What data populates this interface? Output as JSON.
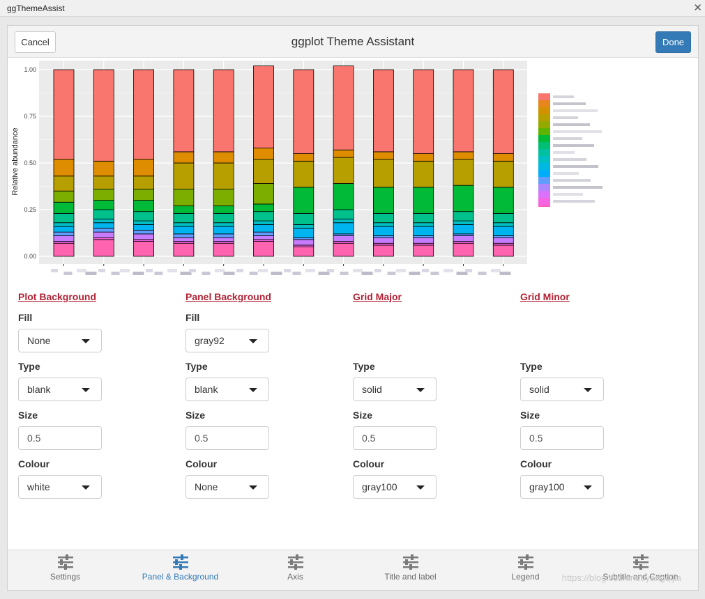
{
  "window": {
    "title": "ggThemeAssist",
    "close_glyph": "✕"
  },
  "header": {
    "cancel_label": "Cancel",
    "title": "ggplot Theme Assistant",
    "done_label": "Done"
  },
  "chart_data": {
    "type": "bar",
    "stacked": true,
    "ylabel": "Relative abundance",
    "ylim": [
      0,
      1
    ],
    "yticks": [
      "0.00",
      "0.25",
      "0.50",
      "0.75",
      "1.00"
    ],
    "categories": [
      "1",
      "2",
      "3",
      "4",
      "5",
      "6",
      "7",
      "8",
      "9",
      "10",
      "11",
      "12"
    ],
    "panel_background": "#ebebeb",
    "grid_color": "#ffffff",
    "legend_position": "right",
    "series": [
      {
        "color": "#f8766d",
        "values": [
          0.48,
          0.49,
          0.48,
          0.44,
          0.44,
          0.44,
          0.45,
          0.45,
          0.44,
          0.45,
          0.44,
          0.45
        ]
      },
      {
        "color": "#de8c00",
        "values": [
          0.09,
          0.08,
          0.09,
          0.06,
          0.06,
          0.06,
          0.04,
          0.04,
          0.04,
          0.04,
          0.04,
          0.04
        ]
      },
      {
        "color": "#b79f00",
        "values": [
          0.08,
          0.07,
          0.07,
          0.14,
          0.14,
          0.13,
          0.14,
          0.14,
          0.15,
          0.14,
          0.14,
          0.14
        ]
      },
      {
        "color": "#7cae00",
        "values": [
          0.06,
          0.06,
          0.06,
          0.09,
          0.09,
          0.11,
          0.0,
          0.0,
          0.0,
          0.0,
          0.0,
          0.0
        ]
      },
      {
        "color": "#00ba38",
        "values": [
          0.06,
          0.05,
          0.06,
          0.04,
          0.04,
          0.04,
          0.14,
          0.14,
          0.14,
          0.14,
          0.14,
          0.14
        ]
      },
      {
        "color": "#00c08b",
        "values": [
          0.05,
          0.05,
          0.05,
          0.05,
          0.05,
          0.05,
          0.06,
          0.05,
          0.05,
          0.05,
          0.05,
          0.05
        ]
      },
      {
        "color": "#00bfc4",
        "values": [
          0.02,
          0.02,
          0.02,
          0.02,
          0.02,
          0.02,
          0.02,
          0.02,
          0.02,
          0.02,
          0.02,
          0.02
        ]
      },
      {
        "color": "#00b4f0",
        "values": [
          0.03,
          0.03,
          0.03,
          0.04,
          0.04,
          0.04,
          0.05,
          0.06,
          0.05,
          0.05,
          0.05,
          0.05
        ]
      },
      {
        "color": "#619cff",
        "values": [
          0.02,
          0.02,
          0.02,
          0.02,
          0.02,
          0.02,
          0.01,
          0.01,
          0.01,
          0.01,
          0.01,
          0.01
        ]
      },
      {
        "color": "#c77cff",
        "values": [
          0.03,
          0.03,
          0.03,
          0.02,
          0.02,
          0.02,
          0.03,
          0.03,
          0.03,
          0.03,
          0.03,
          0.03
        ]
      },
      {
        "color": "#f564e3",
        "values": [
          0.01,
          0.01,
          0.01,
          0.01,
          0.01,
          0.01,
          0.01,
          0.01,
          0.01,
          0.01,
          0.01,
          0.01
        ]
      },
      {
        "color": "#ff64b0",
        "values": [
          0.07,
          0.09,
          0.08,
          0.07,
          0.07,
          0.08,
          0.05,
          0.07,
          0.06,
          0.06,
          0.07,
          0.06
        ]
      }
    ]
  },
  "legend": {
    "swatches": [
      "#f8766d",
      "#e7861b",
      "#d39200",
      "#b79f00",
      "#93aa00",
      "#5eb300",
      "#00ba38",
      "#00bf74",
      "#00c19f",
      "#00bfc4",
      "#00b9e3",
      "#00adfa",
      "#619cff",
      "#ae87ff",
      "#db72fb",
      "#f564e3",
      "#ff61c3"
    ]
  },
  "sections": [
    {
      "title": "Plot Background",
      "fill_label": "Fill",
      "fill_value": "None",
      "type_label": "Type",
      "type_value": "blank",
      "size_label": "Size",
      "size_value": "0.5",
      "colour_label": "Colour",
      "colour_value": "white"
    },
    {
      "title": "Panel Background",
      "fill_label": "Fill",
      "fill_value": "gray92",
      "type_label": "Type",
      "type_value": "blank",
      "size_label": "Size",
      "size_value": "0.5",
      "colour_label": "Colour",
      "colour_value": "None"
    },
    {
      "title": "Grid Major",
      "type_label": "Type",
      "type_value": "solid",
      "size_label": "Size",
      "size_value": "0.5",
      "colour_label": "Colour",
      "colour_value": "gray100"
    },
    {
      "title": "Grid Minor",
      "type_label": "Type",
      "type_value": "solid",
      "size_label": "Size",
      "size_value": "0.5",
      "colour_label": "Colour",
      "colour_value": "gray100"
    }
  ],
  "tabs": [
    {
      "label": "Settings",
      "active": false
    },
    {
      "label": "Panel & Background",
      "active": true
    },
    {
      "label": "Axis",
      "active": false
    },
    {
      "label": "Title and label",
      "active": false
    },
    {
      "label": "Legend",
      "active": false
    },
    {
      "label": "Subtitle and Caption",
      "active": false
    }
  ],
  "colors": {
    "accent": "#337ab7",
    "section_title": "#b22234",
    "tab_inactive": "#6b6b6b"
  },
  "watermark": "https://blog.csdn.net/yangqijia"
}
